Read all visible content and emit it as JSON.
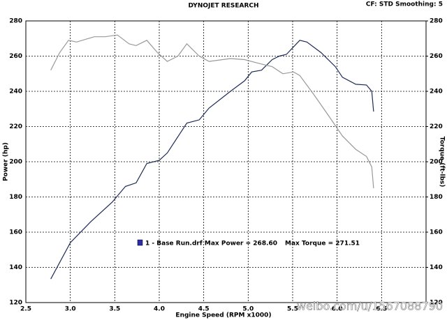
{
  "chart_data": {
    "type": "line",
    "title": "DYNOJET RESEARCH",
    "subtitle": "CF: STD  Smoothing: 5",
    "x_label": "Engine Speed (RPM x1000)",
    "y_label": "Power (hp)",
    "y2_label": "Torque (ft-lbs)",
    "annotations": [
      "1 - Base Run.drf Max Power = 268.60",
      "Max Torque = 271.51",
      "weibo.com/u/1567088790"
    ],
    "legend_color": "#2b2ea8",
    "grid": true,
    "xlim": [
      2.5,
      7.0
    ],
    "xticks": [
      2.5,
      {
        "value": 3,
        "label": "3.0"
      },
      3.5,
      {
        "value": 4,
        "label": "4.0"
      },
      4.5,
      {
        "value": 5,
        "label": "5.0"
      },
      5.5,
      {
        "value": 6,
        "label": "6.0"
      },
      6.5
    ],
    "ylim": [
      120,
      280
    ],
    "yticks": [
      120,
      140,
      160,
      180,
      200,
      220,
      240,
      260,
      280
    ],
    "y2lim": [
      120,
      280
    ],
    "y2ticks": [
      120,
      140,
      160,
      180,
      200,
      220,
      240,
      260,
      280
    ],
    "series": [
      {
        "color": "#1c2a55",
        "x": [
          2.78,
          3.0,
          3.23,
          3.47,
          3.62,
          3.74,
          3.86,
          4.0,
          4.09,
          4.31,
          4.45,
          4.56,
          4.8,
          4.96,
          5.04,
          5.15,
          5.27,
          5.35,
          5.43,
          5.58,
          5.66,
          5.82,
          5.98,
          6.06,
          6.21,
          6.33,
          6.39,
          6.41
        ],
        "values": [
          133.4,
          154,
          166,
          177,
          186,
          188,
          199,
          200.8,
          205,
          222,
          223.8,
          230.5,
          240,
          246,
          251,
          252,
          258,
          260,
          261,
          269,
          268,
          262,
          254,
          248,
          244,
          243.6,
          240,
          228.5
        ]
      },
      {
        "color": "#999999",
        "axis": "y2",
        "x": [
          2.78,
          2.88,
          2.98,
          3.07,
          3.27,
          3.39,
          3.53,
          3.66,
          3.74,
          3.86,
          3.98,
          4.09,
          4.21,
          4.31,
          4.45,
          4.56,
          4.8,
          4.96,
          5.11,
          5.27,
          5.39,
          5.51,
          5.58,
          5.74,
          5.9,
          6.06,
          6.21,
          6.33,
          6.39,
          6.41
        ],
        "values": [
          252,
          262,
          269,
          268,
          271,
          271,
          272,
          267,
          266,
          269,
          262,
          257,
          260,
          267,
          260,
          257,
          258.6,
          258,
          256,
          254,
          250,
          251,
          249,
          238,
          226.5,
          214.6,
          207,
          203,
          197,
          185
        ]
      }
    ]
  }
}
